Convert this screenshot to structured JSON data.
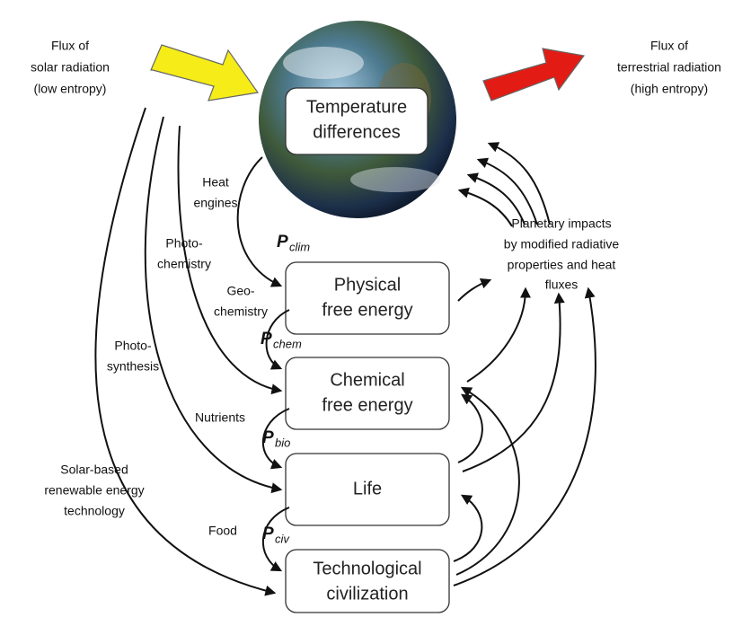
{
  "solar_flux": {
    "lines": [
      "Flux of",
      "solar radiation",
      "(low entropy)"
    ]
  },
  "terrestrial_flux": {
    "lines": [
      "Flux of",
      "terrestrial radiation",
      "(high entropy)"
    ]
  },
  "nodes": [
    {
      "lines": [
        "Temperature",
        "differences"
      ]
    },
    {
      "lines": [
        "Physical",
        "free energy"
      ]
    },
    {
      "lines": [
        "Chemical",
        "free energy"
      ]
    },
    {
      "lines": [
        "Life"
      ]
    },
    {
      "lines": [
        "Technological",
        "civilization"
      ]
    }
  ],
  "powers": [
    {
      "symbol": "P",
      "subscript": "clim"
    },
    {
      "symbol": "P",
      "subscript": "chem"
    },
    {
      "symbol": "P",
      "subscript": "bio"
    },
    {
      "symbol": "P",
      "subscript": "civ"
    }
  ],
  "labels": [
    {
      "lines": [
        "Heat",
        "engines"
      ]
    },
    {
      "lines": [
        "Photo-",
        "chemistry"
      ]
    },
    {
      "lines": [
        "Geo-",
        "chemistry"
      ]
    },
    {
      "lines": [
        "Photo-",
        "synthesis"
      ]
    },
    {
      "lines": [
        "Nutrients"
      ]
    },
    {
      "lines": [
        "Food"
      ]
    },
    {
      "lines": [
        "Solar-based",
        "renewable energy",
        "technology"
      ]
    },
    {
      "lines": [
        "Planetary impacts",
        "by modified radiative",
        "properties and heat",
        "fluxes"
      ]
    }
  ]
}
